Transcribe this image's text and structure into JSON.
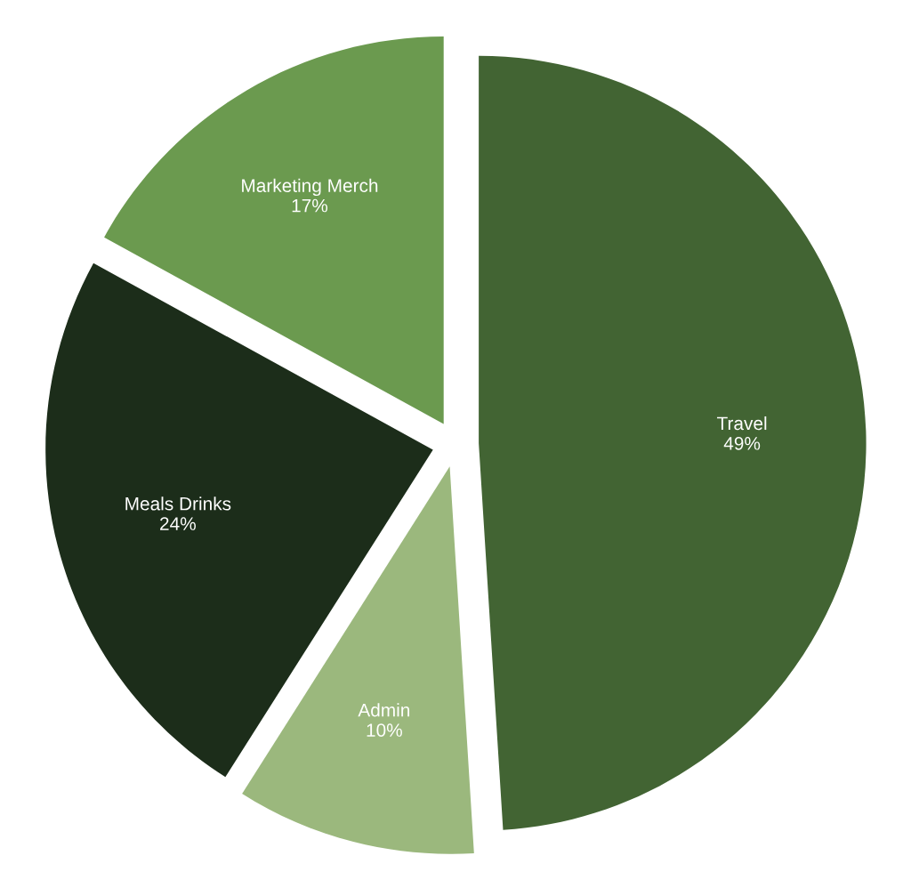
{
  "chart_data": {
    "type": "pie",
    "categories": [
      "Travel",
      "Admin",
      "Meals Drinks",
      "Marketing Merch"
    ],
    "values": [
      49,
      10,
      24,
      17
    ],
    "colors": [
      "#426433",
      "#9bb87d",
      "#1c2d1a",
      "#6b9a4f"
    ],
    "value_labels": [
      "49%",
      "10%",
      "24%",
      "17%"
    ]
  }
}
